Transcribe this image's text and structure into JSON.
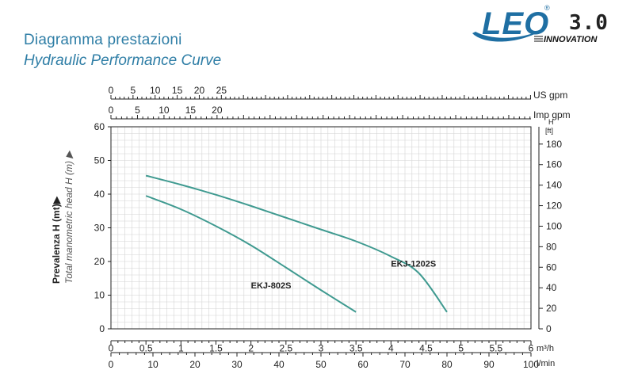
{
  "header": {
    "title_it": "Diagramma prestazioni",
    "title_en": "Hydraulic Performance Curve",
    "brand": "LEO",
    "registered": "®",
    "version": "3.0",
    "tagline": "INNOVATION"
  },
  "colors": {
    "curve": "#3f9a90",
    "grid": "#d4d4d4",
    "axis": "#222222",
    "title": "#2f7ea6",
    "brand": "#1f6fa3"
  },
  "chart_data": {
    "type": "line",
    "ylabel": "Prevalenza H (mt)▶",
    "ylabel2": "Total manometric head H (m) ▶",
    "ylim": [
      0,
      60
    ],
    "yticks": [
      0,
      10,
      20,
      30,
      40,
      50,
      60
    ],
    "xlim": [
      0,
      6
    ],
    "grid": true,
    "right_axis": {
      "header": [
        "H",
        "[ft]"
      ],
      "ticks": [
        0,
        20,
        40,
        60,
        80,
        100,
        120,
        140,
        160,
        180
      ]
    },
    "top_axes": [
      {
        "label": "US gpm",
        "ticks": [
          0,
          5,
          10,
          15,
          20,
          25
        ]
      },
      {
        "label": "Imp gpm",
        "ticks": [
          0,
          5,
          10,
          15,
          20
        ]
      }
    ],
    "bottom_axes": [
      {
        "label": "m³/h",
        "ticks": [
          "0",
          "0.5",
          "1",
          "1.5",
          "2",
          "2.5",
          "3",
          "3.5",
          "4",
          "4.5",
          "5",
          "5.5",
          "6"
        ]
      },
      {
        "label": "l/min",
        "ticks": [
          0,
          10,
          20,
          30,
          40,
          50,
          60,
          70,
          80,
          90,
          100
        ]
      }
    ],
    "series": [
      {
        "name": "EKJ-802S",
        "x": [
          0.5,
          1.0,
          1.5,
          2.0,
          2.5,
          3.0,
          3.5
        ],
        "y": [
          39.5,
          35.5,
          30.5,
          24.8,
          18.2,
          11.5,
          5.0
        ]
      },
      {
        "name": "EKJ-1202S",
        "x": [
          0.5,
          1.0,
          1.5,
          2.0,
          2.5,
          3.0,
          3.5,
          4.0,
          4.4,
          4.8
        ],
        "y": [
          45.5,
          42.8,
          39.8,
          36.5,
          33.0,
          29.5,
          26.0,
          21.5,
          16.5,
          5.0
        ]
      }
    ]
  }
}
